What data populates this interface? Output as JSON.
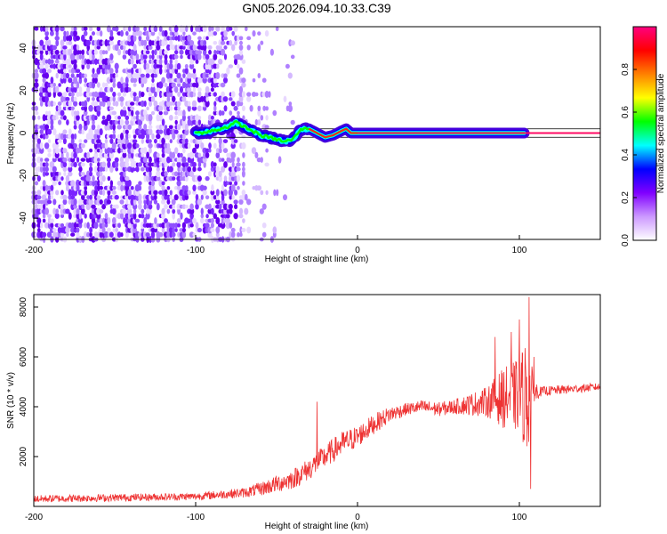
{
  "title": "GN05.2026.094.10.33.C39",
  "chart_data": [
    {
      "type": "heatmap",
      "title": "GN05.2026.094.10.33.C39",
      "xlabel": "Height of straight line (km)",
      "ylabel": "Frequency (Hz)",
      "xlim": [
        -200,
        150
      ],
      "ylim": [
        -50,
        50
      ],
      "xticks": [
        -200,
        -100,
        0,
        100
      ],
      "yticks": [
        -40,
        -20,
        0,
        20,
        40
      ],
      "colorbar": {
        "label": "Normalized spectral amplitude",
        "range": [
          0,
          1
        ],
        "ticks": [
          "0.0",
          "0.2",
          "0.4",
          "0.6",
          "0.8"
        ],
        "colors": [
          "#ffffff",
          "#cc99ff",
          "#8000ff",
          "#0000ff",
          "#00ffff",
          "#00ff00",
          "#ffff00",
          "#ff8000",
          "#ff0000",
          "#ff0080"
        ]
      },
      "ridge": {
        "x": [
          -100,
          -95,
          -90,
          -85,
          -80,
          -75,
          -70,
          -65,
          -60,
          -55,
          -50,
          -45,
          -40,
          -37,
          -34,
          -30,
          -25,
          -20,
          -15,
          -10,
          -7,
          -4,
          0,
          20,
          40,
          60,
          80,
          100,
          105,
          150
        ],
        "y": [
          0,
          0,
          1,
          2,
          3,
          5,
          3,
          1,
          -1,
          -2,
          -3,
          -4,
          -3,
          0,
          2,
          2,
          0,
          -2,
          -1,
          1,
          2,
          0,
          0,
          0,
          0,
          0,
          0,
          0,
          0,
          0
        ]
      },
      "noise_region": {
        "x_from": -200,
        "x_to": -40
      },
      "band_lines_hz": [
        -2,
        2
      ]
    },
    {
      "type": "line",
      "xlabel": "Height of straight line (km)",
      "ylabel": "SNR (10 * v/v)",
      "xlim": [
        -200,
        150
      ],
      "ylim": [
        0,
        8500
      ],
      "xticks": [
        -200,
        -100,
        0,
        100
      ],
      "yticks": [
        2000,
        4000,
        6000,
        8000
      ],
      "color": "#ee3333",
      "envelope": {
        "x": [
          -200,
          -150,
          -100,
          -80,
          -70,
          -60,
          -50,
          -40,
          -30,
          -20,
          -10,
          0,
          10,
          20,
          30,
          40,
          50,
          60,
          70,
          80,
          85,
          90,
          95,
          100,
          104,
          108,
          112,
          120,
          130,
          140,
          150
        ],
        "y": [
          300,
          350,
          400,
          500,
          550,
          700,
          900,
          1100,
          1500,
          2000,
          2500,
          2800,
          3300,
          3700,
          3900,
          4000,
          3900,
          4000,
          4100,
          4200,
          4300,
          4350,
          4400,
          4450,
          4500,
          4500,
          4600,
          4650,
          4700,
          4750,
          4800
        ]
      },
      "noise_amplitude": {
        "x": [
          -200,
          -100,
          -70,
          -50,
          -30,
          -10,
          10,
          30,
          60,
          80,
          90,
          100,
          105,
          108,
          112,
          150
        ],
        "y": [
          150,
          150,
          200,
          350,
          450,
          500,
          400,
          250,
          300,
          600,
          1200,
          1500,
          2500,
          1000,
          200,
          150
        ]
      },
      "spikes": [
        {
          "x": -25,
          "y": 4200
        },
        {
          "x": -28,
          "y": 1500
        },
        {
          "x": 85,
          "y": 6800
        },
        {
          "x": 95,
          "y": 7000
        },
        {
          "x": 100,
          "y": 7500
        },
        {
          "x": 106,
          "y": 8400
        },
        {
          "x": 107,
          "y": 700
        },
        {
          "x": 109,
          "y": 6000
        }
      ]
    }
  ]
}
